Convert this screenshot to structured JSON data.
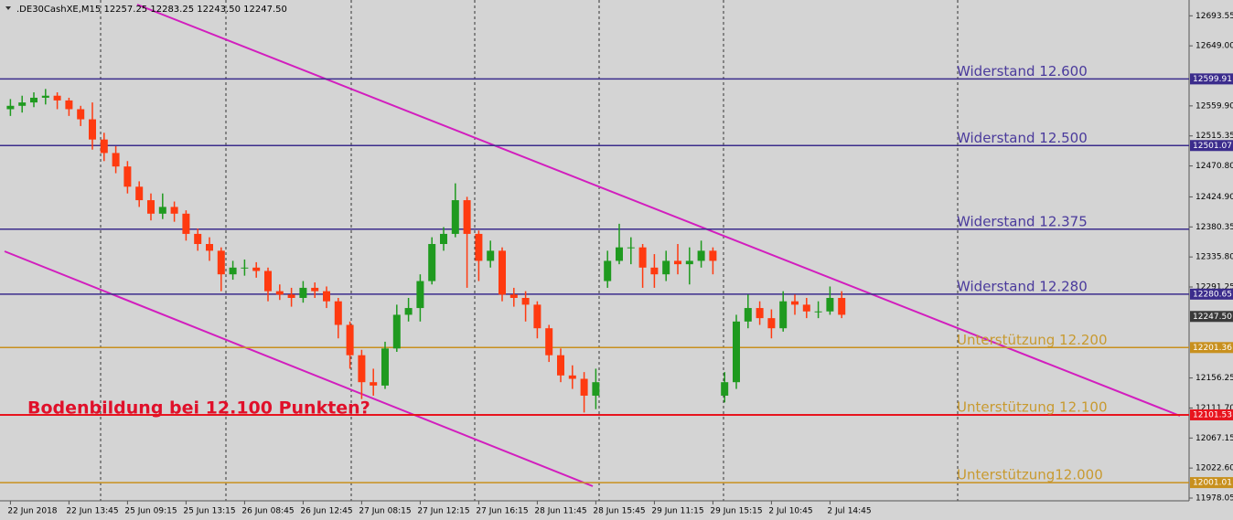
{
  "chart_data": {
    "type": "candlestick",
    "title": ".DE30CashXE,M15  12257.25 12283.25 12243.50 12247.50",
    "annotation": "Bodenbildung bei 12.100 Punkten?",
    "categories": [
      "22 Jun 2018",
      null,
      null,
      null,
      null,
      "22 Jun 13:45",
      null,
      null,
      null,
      null,
      "25 Jun 09:15",
      null,
      null,
      null,
      null,
      "25 Jun 13:15",
      null,
      null,
      null,
      null,
      "26 Jun 08:45",
      null,
      null,
      null,
      null,
      "26 Jun 12:45",
      null,
      null,
      null,
      null,
      "27 Jun 08:15",
      null,
      null,
      null,
      null,
      "27 Jun 12:15",
      null,
      null,
      null,
      null,
      "27 Jun 16:15",
      null,
      null,
      null,
      null,
      "28 Jun 11:45",
      null,
      null,
      null,
      null,
      "28 Jun 15:45",
      null,
      null,
      null,
      null,
      "29 Jun 11:15",
      null,
      null,
      null,
      null,
      "29 Jun 15:15",
      null,
      null,
      null,
      null,
      "2 Jul 10:45",
      null,
      null,
      null,
      null,
      "2 Jul 14:45",
      null
    ],
    "open": [
      12555,
      12560,
      12565,
      12572,
      12575,
      12568,
      12555,
      12540,
      12510,
      12490,
      12470,
      12440,
      12420,
      12400,
      12410,
      12400,
      12370,
      12355,
      12345,
      12310,
      12320,
      12320,
      12315,
      12285,
      12280,
      12275,
      12290,
      12285,
      12270,
      12235,
      12190,
      12150,
      12145,
      12200,
      12250,
      12260,
      12300,
      12355,
      12370,
      12420,
      12370,
      12330,
      12345,
      12280,
      12275,
      12265,
      12230,
      12190,
      12160,
      12155,
      12130,
      12300,
      12330,
      12350,
      12350,
      12320,
      12310,
      12330,
      12325,
      12330,
      12345,
      12130,
      12150,
      12240,
      12260,
      12245,
      12230,
      12270,
      12265,
      12255,
      12255,
      12275
    ],
    "high": [
      12570,
      12575,
      12580,
      12585,
      12580,
      12572,
      12560,
      12565,
      12520,
      12500,
      12478,
      12448,
      12430,
      12430,
      12418,
      12405,
      12378,
      12365,
      12350,
      12330,
      12332,
      12328,
      12320,
      12295,
      12290,
      12300,
      12298,
      12292,
      12275,
      12240,
      12198,
      12170,
      12210,
      12265,
      12275,
      12310,
      12365,
      12380,
      12445,
      12425,
      12375,
      12360,
      12350,
      12290,
      12285,
      12270,
      12235,
      12200,
      12175,
      12165,
      12170,
      12345,
      12385,
      12365,
      12355,
      12340,
      12345,
      12355,
      12350,
      12360,
      12350,
      12165,
      12250,
      12280,
      12270,
      12258,
      12285,
      12280,
      12275,
      12270,
      12292,
      12285
    ],
    "low": [
      12545,
      12550,
      12558,
      12562,
      12555,
      12545,
      12530,
      12495,
      12478,
      12460,
      12430,
      12410,
      12390,
      12392,
      12388,
      12360,
      12345,
      12330,
      12285,
      12302,
      12308,
      12305,
      12270,
      12272,
      12262,
      12268,
      12275,
      12260,
      12215,
      12170,
      12125,
      12130,
      12140,
      12195,
      12240,
      12240,
      12295,
      12345,
      12365,
      12290,
      12300,
      12320,
      12270,
      12262,
      12240,
      12215,
      12180,
      12150,
      12140,
      12105,
      12110,
      12290,
      12325,
      12325,
      12290,
      12290,
      12300,
      12310,
      12295,
      12320,
      12310,
      12120,
      12140,
      12230,
      12235,
      12215,
      12225,
      12250,
      12245,
      12245,
      12250,
      12245
    ],
    "close": [
      12560,
      12565,
      12572,
      12575,
      12568,
      12555,
      12540,
      12510,
      12490,
      12470,
      12440,
      12420,
      12400,
      12410,
      12400,
      12370,
      12355,
      12345,
      12310,
      12320,
      12320,
      12315,
      12285,
      12280,
      12275,
      12290,
      12285,
      12270,
      12235,
      12190,
      12150,
      12145,
      12200,
      12250,
      12260,
      12300,
      12355,
      12370,
      12420,
      12370,
      12330,
      12345,
      12280,
      12275,
      12265,
      12230,
      12190,
      12160,
      12155,
      12130,
      12150,
      12330,
      12350,
      12350,
      12320,
      12310,
      12330,
      12325,
      12330,
      12345,
      12330,
      12150,
      12240,
      12260,
      12245,
      12230,
      12270,
      12265,
      12255,
      12255,
      12275,
      12250
    ],
    "up_color": "#1f9a1f",
    "down_color": "#ff3a10",
    "ylim": [
      11974,
      12717
    ],
    "yticks": [
      12693.55,
      {
        "value": 12649.0,
        "label": "12649.00"
      },
      {
        "value": 12559.9,
        "label": "12559.90"
      },
      12515.35,
      {
        "value": 12470.8,
        "label": "12470.80"
      },
      {
        "value": 12424.9,
        "label": "12424.90"
      },
      12380.35,
      {
        "value": 12335.8,
        "label": "12335.80"
      },
      12291.25,
      12156.25,
      {
        "value": 12111.7,
        "label": "12111.70"
      },
      12067.15,
      {
        "value": 12022.6,
        "label": "12022.60"
      },
      11978.05
    ],
    "levels": [
      {
        "name": "Widerstand 12.600",
        "value": 12599.91,
        "color": "#3b2c8c",
        "label_color": "#4a3a9c",
        "marker": true
      },
      {
        "name": "Widerstand 12.500",
        "value": 12501.07,
        "color": "#3b2c8c",
        "label_color": "#4a3a9c",
        "marker": true
      },
      {
        "name": "Widerstand 12.375",
        "value": 12377,
        "color": "#3b2c8c",
        "label_color": "#4a3a9c",
        "marker": false
      },
      {
        "name": "Widerstand 12.280",
        "value": 12280.65,
        "color": "#3b2c8c",
        "label_color": "#4a3a9c",
        "marker": true
      },
      {
        "name": "Unterstützung 12.200",
        "value": 12201.36,
        "color": "#c8901e",
        "label_color": "#c89a30",
        "marker": true
      },
      {
        "name": "Unterstützung 12.100",
        "value": 12101.53,
        "color": "#e8141e",
        "label_color": "#c89a30",
        "marker": true
      },
      {
        "name": "Unterstützung12.000",
        "value": 12001.01,
        "color": "#c8901e",
        "label_color": "#c89a30",
        "marker": true
      }
    ],
    "last_price": {
      "value": 12247.5,
      "label": "12247.50"
    }
  }
}
